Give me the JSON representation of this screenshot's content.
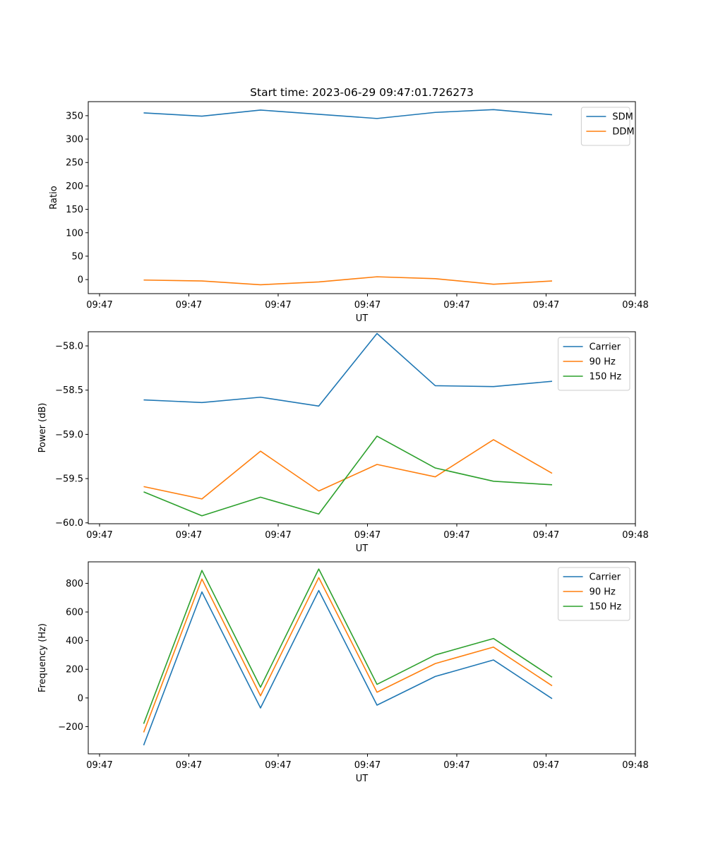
{
  "title": "Start time: 2023-06-29 09:47:01.726273",
  "colors": {
    "blue": "#1f77b4",
    "orange": "#ff7f0e",
    "green": "#2ca02c"
  },
  "chart_data": [
    {
      "type": "line",
      "xlabel": "UT",
      "ylabel": "Ratio",
      "xtick_labels": [
        "09:47",
        "09:47",
        "09:47",
        "09:47",
        "09:47",
        "09:47",
        "09:48"
      ],
      "ytick_labels": [
        "0",
        "50",
        "100",
        "150",
        "200",
        "250",
        "300",
        "350"
      ],
      "ylim": [
        -30,
        380
      ],
      "legend_position": "top-right",
      "series": [
        {
          "name": "SDM",
          "color": "#1f77b4",
          "values": [
            356,
            349,
            362,
            353,
            344,
            357,
            363,
            352
          ]
        },
        {
          "name": "DDM",
          "color": "#ff7f0e",
          "values": [
            -1,
            -3,
            -11,
            -5,
            6,
            2,
            -10,
            -3
          ]
        }
      ]
    },
    {
      "type": "line",
      "xlabel": "UT",
      "ylabel": "Power (dB)",
      "xtick_labels": [
        "09:47",
        "09:47",
        "09:47",
        "09:47",
        "09:47",
        "09:47",
        "09:48"
      ],
      "ytick_labels": [
        "−60.0",
        "−59.5",
        "−59.0",
        "−58.5",
        "−58.0"
      ],
      "ylim": [
        -60.01,
        -57.84
      ],
      "legend_position": "top-right",
      "series": [
        {
          "name": "Carrier",
          "color": "#1f77b4",
          "values": [
            -58.61,
            -58.64,
            -58.58,
            -58.68,
            -57.86,
            -58.45,
            -58.46,
            -58.4
          ]
        },
        {
          "name": "90 Hz",
          "color": "#ff7f0e",
          "values": [
            -59.59,
            -59.73,
            -59.19,
            -59.64,
            -59.34,
            -59.48,
            -59.06,
            -59.44
          ]
        },
        {
          "name": "150 Hz",
          "color": "#2ca02c",
          "values": [
            -59.65,
            -59.92,
            -59.71,
            -59.9,
            -59.02,
            -59.38,
            -59.53,
            -59.57
          ]
        }
      ]
    },
    {
      "type": "line",
      "xlabel": "UT",
      "ylabel": "Frequency (Hz)",
      "xtick_labels": [
        "09:47",
        "09:47",
        "09:47",
        "09:47",
        "09:47",
        "09:47",
        "09:48"
      ],
      "ytick_labels": [
        "−200",
        "0",
        "200",
        "400",
        "600",
        "800"
      ],
      "ylim": [
        -390,
        950
      ],
      "legend_position": "top-right",
      "series": [
        {
          "name": "Carrier",
          "color": "#1f77b4",
          "values": [
            -330,
            740,
            -70,
            750,
            -50,
            150,
            265,
            -5
          ]
        },
        {
          "name": "90 Hz",
          "color": "#ff7f0e",
          "values": [
            -240,
            830,
            15,
            840,
            40,
            240,
            355,
            85
          ]
        },
        {
          "name": "150 Hz",
          "color": "#2ca02c",
          "values": [
            -180,
            890,
            75,
            900,
            95,
            300,
            415,
            145
          ]
        }
      ]
    }
  ]
}
